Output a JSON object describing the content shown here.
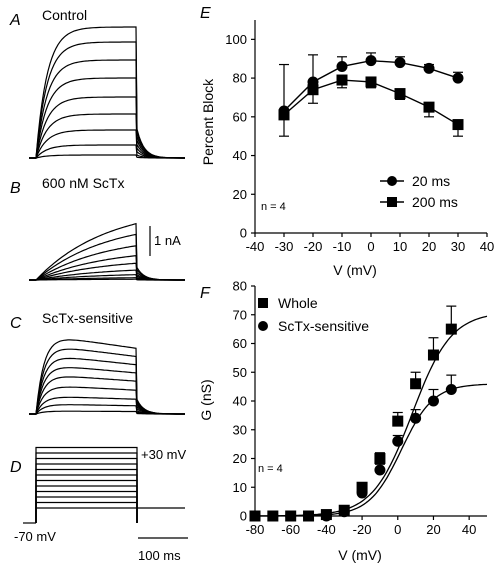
{
  "panels": {
    "A": {
      "letter": "A",
      "title": "Control"
    },
    "B": {
      "letter": "B",
      "title": "600 nM ScTx",
      "scalebar_label": "1 nA"
    },
    "C": {
      "letter": "C",
      "title": "ScTx-sensitive"
    },
    "D": {
      "letter": "D",
      "step_label": "+30 mV",
      "holding_label": "-70 mV",
      "time_scale_label": "100 ms"
    },
    "E": {
      "letter": "E"
    },
    "F": {
      "letter": "F"
    }
  },
  "chart_data": [
    {
      "id": "E",
      "type": "line",
      "ylabel": "Percent Block",
      "xlabel": "V (mV)",
      "xlim": [
        -40,
        40
      ],
      "ylim": [
        0,
        110
      ],
      "xticks": [
        -40,
        -30,
        -20,
        -10,
        0,
        10,
        20,
        30,
        40
      ],
      "yticks": [
        0,
        20,
        40,
        60,
        80,
        100
      ],
      "legend_placement": "bottom-right",
      "annotation": "n = 4",
      "series": [
        {
          "name": "20 ms",
          "marker": "circle",
          "x": [
            -30,
            -20,
            -10,
            0,
            10,
            20,
            30
          ],
          "y": [
            63,
            78,
            86,
            89,
            88,
            85,
            80
          ],
          "err": [
            24,
            14,
            5,
            4,
            3,
            2,
            3
          ]
        },
        {
          "name": "200 ms",
          "marker": "square",
          "x": [
            -30,
            -20,
            -10,
            0,
            10,
            20,
            30
          ],
          "y": [
            61,
            74,
            79,
            78,
            72,
            65,
            56
          ],
          "err": [
            11,
            7,
            4,
            3,
            3,
            5,
            6
          ]
        }
      ]
    },
    {
      "id": "F",
      "type": "scatter",
      "ylabel": "G (nS)",
      "xlabel": "V (mV)",
      "xlim": [
        -80,
        50
      ],
      "ylim": [
        0,
        80
      ],
      "xticks": [
        -80,
        -60,
        -40,
        -20,
        0,
        20,
        40
      ],
      "yticks": [
        0,
        10,
        20,
        30,
        40,
        50,
        60,
        70,
        80
      ],
      "legend_placement": "top-left",
      "annotation": "n = 4",
      "series": [
        {
          "name": "Whole",
          "marker": "square",
          "x": [
            -80,
            -70,
            -60,
            -50,
            -40,
            -30,
            -20,
            -10,
            0,
            10,
            20,
            30
          ],
          "y": [
            0,
            0,
            0,
            0,
            0.5,
            2,
            10,
            20,
            33,
            46,
            56,
            65
          ],
          "err": [
            0,
            0,
            0,
            0,
            0,
            0,
            1,
            2,
            3,
            4,
            6,
            8
          ],
          "fit": {
            "gmax": 71,
            "vhalf": 8,
            "k": 11
          }
        },
        {
          "name": "ScTx-sensitive",
          "marker": "circle",
          "x": [
            -80,
            -70,
            -60,
            -50,
            -40,
            -30,
            -20,
            -10,
            0,
            10,
            20,
            30
          ],
          "y": [
            0,
            0,
            0,
            0,
            0,
            1.5,
            8,
            16,
            26,
            34,
            40,
            44
          ],
          "err": [
            0,
            0,
            0,
            0,
            0,
            0,
            1,
            2,
            2,
            3,
            4,
            5
          ],
          "fit": {
            "gmax": 46,
            "vhalf": 2,
            "k": 9
          }
        }
      ]
    }
  ]
}
